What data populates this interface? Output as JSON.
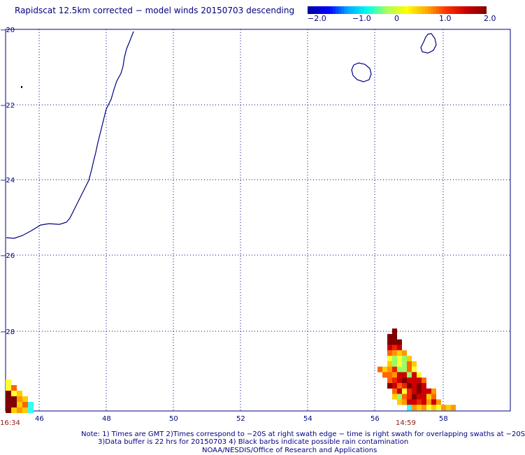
{
  "title": "Rapidscat 12.5km corrected − model winds 20150703 descending",
  "colorbar": {
    "labels": [
      "−2.0",
      "−1.0",
      "0",
      "1.0",
      "2.0"
    ],
    "stops": [
      "#0000aa",
      "#0000ff",
      "#00aaff",
      "#00ffee",
      "#aaff55",
      "#ffff00",
      "#ffaa00",
      "#ff3300",
      "#cc0000",
      "#880000"
    ]
  },
  "map": {
    "lat_labels": [
      "−20",
      "−22",
      "−24",
      "−26",
      "−28"
    ],
    "lon_labels": [
      "46",
      "48",
      "50",
      "52",
      "54",
      "56",
      "58"
    ],
    "time_labels": [
      "16:34",
      "14:59"
    ],
    "grid_color": "#000080",
    "coast_color": "#000080"
  },
  "notes": {
    "line1": "Note: 1) Times are GMT 2)Times correspond to −20S at right swath edge − time is right swath for overlapping swaths at −20S",
    "line2": "3)Data buffer is 22 hrs for 20150703 4) Black barbs indicate possible rain contamination",
    "credit": "NOAA/NESDIS/Office of Research and Applications"
  }
}
